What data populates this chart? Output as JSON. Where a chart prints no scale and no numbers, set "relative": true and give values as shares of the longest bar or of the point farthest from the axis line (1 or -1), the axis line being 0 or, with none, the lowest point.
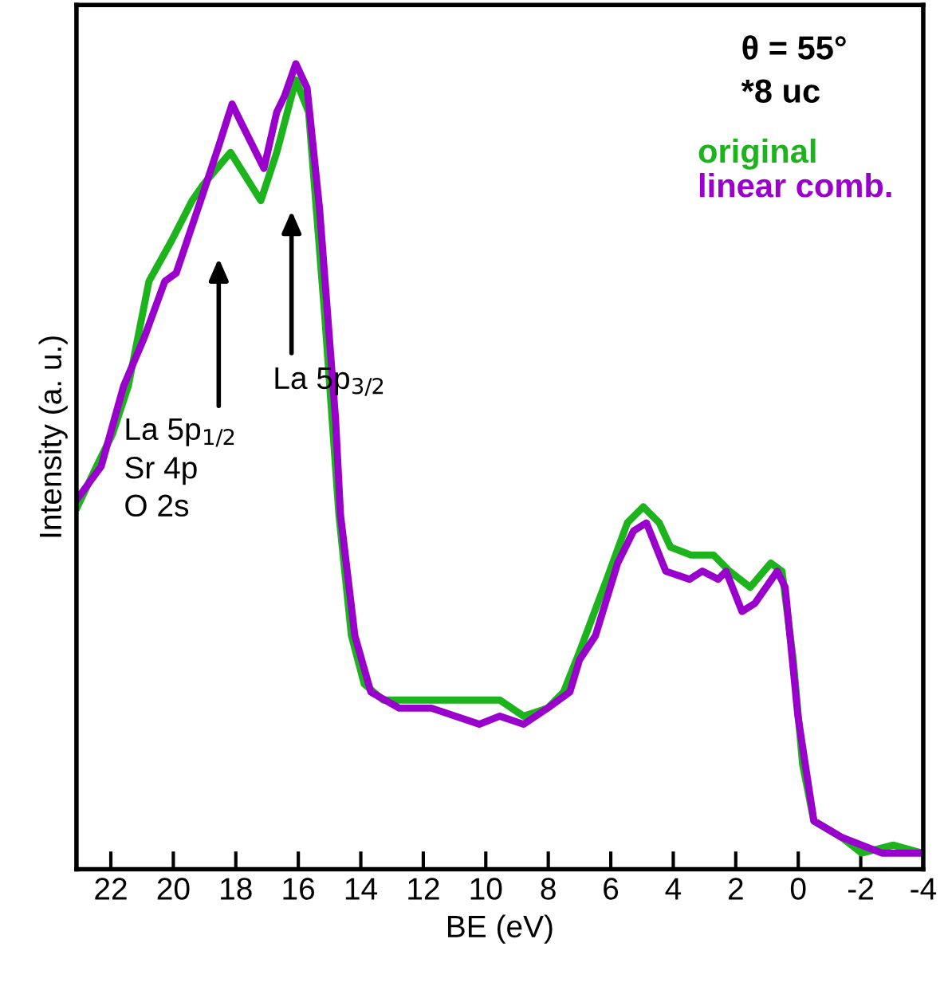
{
  "chart_data": {
    "type": "line",
    "relative": true,
    "xlabel": "BE (eV)",
    "ylabel": "Intensity (a. u.)",
    "xlim": [
      23.1,
      -4
    ],
    "xticks": [
      22,
      20,
      18,
      16,
      14,
      12,
      10,
      8,
      6,
      4,
      2,
      0,
      -2,
      -4
    ],
    "tick_labels": "x",
    "grid": false,
    "legend": "top right",
    "marker": "none",
    "line_style": "solid",
    "annotations": [
      "θ = 55°",
      "*8 uc",
      "La 5p$_{1/2}$\nSr 4p\nO 2s",
      "La 5p$_{3/2}$"
    ],
    "series": [
      {
        "name": "original",
        "color": "#1db31d",
        "x": [
          23.07,
          22.46,
          21.95,
          21.44,
          20.78,
          20.06,
          19.4,
          19.04,
          18.17,
          17.2,
          16.69,
          16.08,
          15.67,
          15.16,
          14.7,
          14.3,
          13.89,
          13.28,
          12.51,
          11.74,
          10.21,
          9.55,
          8.79,
          8.02,
          7.51,
          7.0,
          6.13,
          5.47,
          4.96,
          4.45,
          4.09,
          3.43,
          2.71,
          2.2,
          1.54,
          0.88,
          0.52,
          0.16,
          -0.14,
          -0.5,
          -1.37,
          -2.03,
          -3.05,
          -3.97
        ],
        "values": [
          0.45,
          0.5,
          0.54,
          0.6,
          0.73,
          0.78,
          0.83,
          0.85,
          0.89,
          0.83,
          0.89,
          0.98,
          0.94,
          0.69,
          0.44,
          0.29,
          0.23,
          0.21,
          0.21,
          0.21,
          0.21,
          0.21,
          0.19,
          0.2,
          0.22,
          0.27,
          0.36,
          0.43,
          0.45,
          0.43,
          0.4,
          0.39,
          0.39,
          0.37,
          0.35,
          0.38,
          0.37,
          0.26,
          0.13,
          0.06,
          0.04,
          0.02,
          0.03,
          0.02
        ]
      },
      {
        "name": "linear comb.",
        "color": "#9900cc",
        "x": [
          23.07,
          22.31,
          21.59,
          20.93,
          20.27,
          19.91,
          19.04,
          18.53,
          18.12,
          17.87,
          17.1,
          16.69,
          16.44,
          16.08,
          15.72,
          15.32,
          14.81,
          14.65,
          14.19,
          13.68,
          12.77,
          11.74,
          10.21,
          9.55,
          8.79,
          8.02,
          7.31,
          7.0,
          6.49,
          5.78,
          5.27,
          4.86,
          4.24,
          3.48,
          3.07,
          2.56,
          2.31,
          1.8,
          1.39,
          0.67,
          0.42,
          0.01,
          -0.5,
          -1.37,
          -2.69,
          -3.97
        ],
        "values": [
          0.46,
          0.5,
          0.6,
          0.66,
          0.73,
          0.74,
          0.84,
          0.9,
          0.95,
          0.93,
          0.87,
          0.94,
          0.96,
          1.0,
          0.97,
          0.82,
          0.56,
          0.44,
          0.29,
          0.22,
          0.2,
          0.2,
          0.18,
          0.19,
          0.18,
          0.2,
          0.22,
          0.26,
          0.29,
          0.38,
          0.42,
          0.43,
          0.37,
          0.36,
          0.37,
          0.36,
          0.37,
          0.32,
          0.33,
          0.37,
          0.35,
          0.19,
          0.06,
          0.04,
          0.02,
          0.02
        ]
      }
    ]
  }
}
